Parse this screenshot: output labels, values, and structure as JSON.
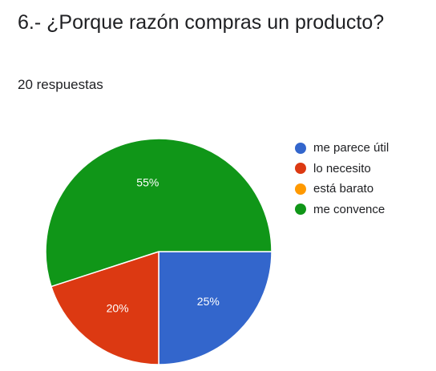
{
  "question": {
    "title": "6.- ¿Porque razón compras un producto?",
    "response_count": "20 respuestas"
  },
  "chart_data": {
    "type": "pie",
    "title": "",
    "slices": [
      {
        "label": "me parece útil",
        "value": 25,
        "percent_label": "25%",
        "color": "#3366cc"
      },
      {
        "label": "lo necesito",
        "value": 20,
        "percent_label": "20%",
        "color": "#dc3912"
      },
      {
        "label": "está barato",
        "value": 0,
        "percent_label": "",
        "color": "#ff9900"
      },
      {
        "label": "me convence",
        "value": 55,
        "percent_label": "55%",
        "color": "#109618"
      }
    ],
    "legend_position": "right"
  }
}
